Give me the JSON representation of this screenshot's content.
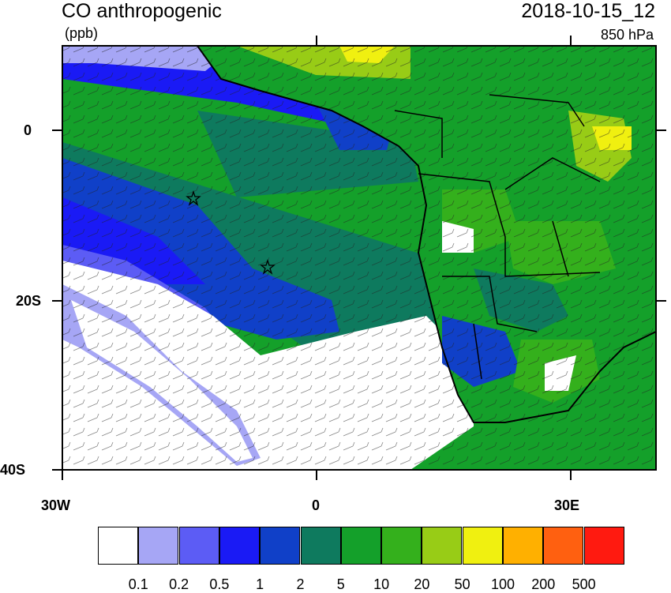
{
  "header": {
    "title": "CO anthropogenic",
    "units": "(ppb)",
    "datetime": "2018-10-15_12",
    "level": "850 hPa"
  },
  "axes": {
    "lat_labels": [
      "0",
      "20S",
      "40S"
    ],
    "lon_labels": [
      "30W",
      "0",
      "30E"
    ]
  },
  "legend": {
    "colors": [
      "#ffffff",
      "#a6a6f5",
      "#5c5cf5",
      "#1a1af5",
      "#1040c8",
      "#0e7a5e",
      "#14a02a",
      "#34b01c",
      "#98cc16",
      "#f0f010",
      "#ffb000",
      "#ff6010",
      "#ff1a10"
    ],
    "labels": [
      "0.1",
      "0.2",
      "0.5",
      "1",
      "2",
      "5",
      "10",
      "20",
      "50",
      "100",
      "200",
      "500"
    ]
  },
  "markers": [
    {
      "name": "star-marker-1"
    },
    {
      "name": "star-marker-2"
    }
  ]
}
